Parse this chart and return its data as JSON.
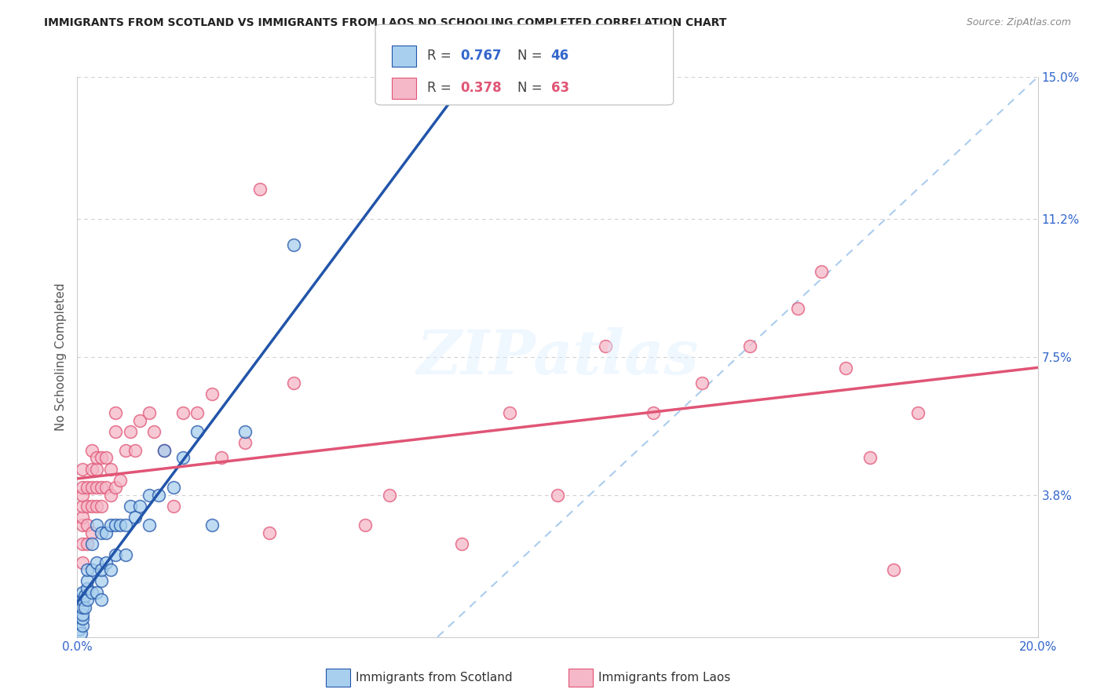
{
  "title": "IMMIGRANTS FROM SCOTLAND VS IMMIGRANTS FROM LAOS NO SCHOOLING COMPLETED CORRELATION CHART",
  "source": "Source: ZipAtlas.com",
  "ylabel": "No Schooling Completed",
  "xlim": [
    0.0,
    0.2
  ],
  "ylim": [
    0.0,
    0.15
  ],
  "yticks_right": [
    0.038,
    0.075,
    0.112,
    0.15
  ],
  "yticklabels_right": [
    "3.8%",
    "7.5%",
    "11.2%",
    "15.0%"
  ],
  "scotland_color": "#A8D0EE",
  "laos_color": "#F5B8C8",
  "scotland_line_color": "#2255AA",
  "laos_line_color": "#E05575",
  "background_color": "#FFFFFF",
  "grid_color": "#D0D0D0",
  "watermark_text": "ZIPatlas",
  "diag_color": "#AACCEE",
  "scotland_x": [
    0.0005,
    0.0007,
    0.001,
    0.001,
    0.001,
    0.001,
    0.001,
    0.001,
    0.0015,
    0.0015,
    0.002,
    0.002,
    0.002,
    0.002,
    0.003,
    0.003,
    0.003,
    0.004,
    0.004,
    0.004,
    0.005,
    0.005,
    0.005,
    0.005,
    0.006,
    0.006,
    0.007,
    0.007,
    0.008,
    0.008,
    0.009,
    0.01,
    0.01,
    0.011,
    0.012,
    0.013,
    0.015,
    0.015,
    0.017,
    0.018,
    0.02,
    0.022,
    0.025,
    0.028,
    0.035,
    0.045
  ],
  "scotland_y": [
    0.002,
    0.001,
    0.003,
    0.005,
    0.006,
    0.008,
    0.01,
    0.012,
    0.008,
    0.011,
    0.01,
    0.013,
    0.015,
    0.018,
    0.012,
    0.018,
    0.025,
    0.012,
    0.02,
    0.03,
    0.01,
    0.015,
    0.018,
    0.028,
    0.02,
    0.028,
    0.018,
    0.03,
    0.022,
    0.03,
    0.03,
    0.022,
    0.03,
    0.035,
    0.032,
    0.035,
    0.03,
    0.038,
    0.038,
    0.05,
    0.04,
    0.048,
    0.055,
    0.03,
    0.055,
    0.105
  ],
  "laos_x": [
    0.001,
    0.001,
    0.001,
    0.001,
    0.001,
    0.001,
    0.001,
    0.001,
    0.002,
    0.002,
    0.002,
    0.002,
    0.003,
    0.003,
    0.003,
    0.003,
    0.003,
    0.004,
    0.004,
    0.004,
    0.004,
    0.005,
    0.005,
    0.005,
    0.006,
    0.006,
    0.007,
    0.007,
    0.008,
    0.008,
    0.008,
    0.009,
    0.01,
    0.011,
    0.012,
    0.013,
    0.015,
    0.016,
    0.018,
    0.02,
    0.022,
    0.025,
    0.028,
    0.03,
    0.035,
    0.038,
    0.04,
    0.045,
    0.06,
    0.065,
    0.08,
    0.09,
    0.1,
    0.11,
    0.12,
    0.13,
    0.14,
    0.15,
    0.155,
    0.16,
    0.165,
    0.17,
    0.175
  ],
  "laos_y": [
    0.02,
    0.025,
    0.03,
    0.032,
    0.035,
    0.038,
    0.04,
    0.045,
    0.025,
    0.03,
    0.035,
    0.04,
    0.028,
    0.035,
    0.04,
    0.045,
    0.05,
    0.035,
    0.04,
    0.045,
    0.048,
    0.035,
    0.04,
    0.048,
    0.04,
    0.048,
    0.038,
    0.045,
    0.055,
    0.06,
    0.04,
    0.042,
    0.05,
    0.055,
    0.05,
    0.058,
    0.06,
    0.055,
    0.05,
    0.035,
    0.06,
    0.06,
    0.065,
    0.048,
    0.052,
    0.12,
    0.028,
    0.068,
    0.03,
    0.038,
    0.025,
    0.06,
    0.038,
    0.078,
    0.06,
    0.068,
    0.078,
    0.088,
    0.098,
    0.072,
    0.048,
    0.018,
    0.06
  ],
  "legend_r1_label": "R = ",
  "legend_r1_val": "0.767",
  "legend_n1_label": "N = ",
  "legend_n1_val": "46",
  "legend_r2_label": "R = ",
  "legend_r2_val": "0.378",
  "legend_n2_label": "N = ",
  "legend_n2_val": "63",
  "legend_r_color": "#3366CC",
  "legend_n_color": "#3366CC",
  "legend_r2_color": "#E05575",
  "legend_n2_color": "#E05575"
}
